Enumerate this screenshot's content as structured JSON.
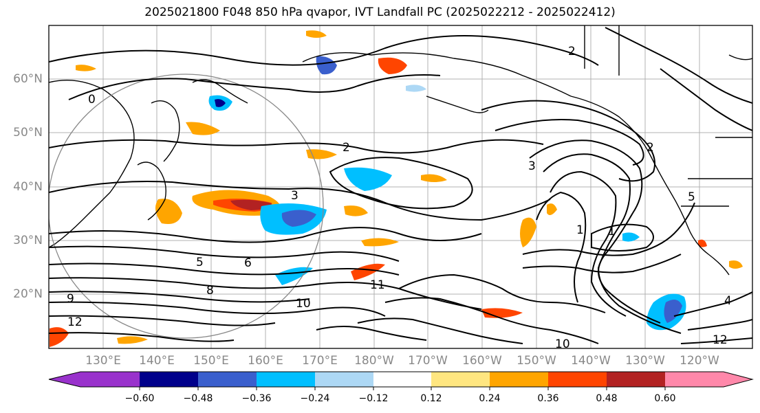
{
  "title": "2025021800 F048 850 hPa qvapor, IVT Landfall PC (2025022212 - 2025022412)",
  "lat_labels": [
    "60°N",
    "50°N",
    "40°N",
    "30°N",
    "20°N"
  ],
  "lon_labels": [
    "130°E",
    "140°E",
    "150°E",
    "160°E",
    "170°E",
    "180°W",
    "170°W",
    "160°W",
    "150°W",
    "140°W",
    "130°W",
    "120°W"
  ],
  "colorbar": {
    "tick_labels": [
      "−0.60",
      "−0.48",
      "−0.36",
      "−0.24",
      "−0.12",
      "0.12",
      "0.24",
      "0.36",
      "0.48",
      "0.60"
    ],
    "colors": [
      "#9932cc",
      "#00008b",
      "#3a5fcd",
      "#00bfff",
      "#add8f5",
      "#ffffff",
      "#ffe680",
      "#ffa500",
      "#ff4500",
      "#b22222",
      "#ff88aa"
    ]
  },
  "contour_labels": [
    "0",
    "2",
    "2",
    "2",
    "3",
    "3",
    "5",
    "6",
    "8",
    "9",
    "10",
    "11",
    "12",
    "1",
    "1",
    "4",
    "5",
    "10",
    "12"
  ]
}
